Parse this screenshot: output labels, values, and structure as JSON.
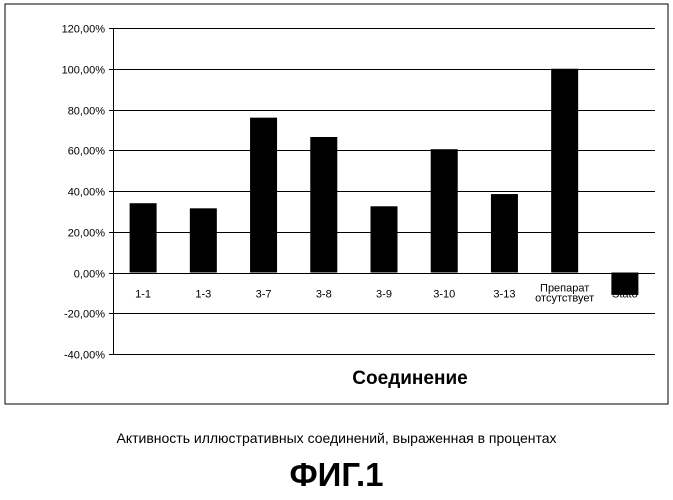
{
  "chart_data": {
    "type": "bar",
    "categories": [
      "1-1",
      "1-3",
      "3-7",
      "3-8",
      "3-9",
      "3-10",
      "3-13",
      "Препарат отсутствует",
      "Stato"
    ],
    "category_lines": [
      [
        "1-1"
      ],
      [
        "1-3"
      ],
      [
        "3-7"
      ],
      [
        "3-8"
      ],
      [
        "3-9"
      ],
      [
        "3-10"
      ],
      [
        "3-13"
      ],
      [
        "Препарат",
        "отсутствует"
      ],
      [
        "Stato"
      ]
    ],
    "values": [
      34,
      31.5,
      76,
      66.5,
      32.5,
      60.5,
      38.5,
      100,
      -11
    ],
    "ylim": [
      -40,
      120
    ],
    "yticks": [
      -40,
      -20,
      0,
      20,
      40,
      60,
      80,
      100,
      120
    ],
    "ytick_labels": [
      "-40,00%",
      "-20,00%",
      "0,00%",
      "20,00%",
      "40,00%",
      "60,00%",
      "80,00%",
      "100,00%",
      "120,00%"
    ],
    "xlabel": "Соединение",
    "ylabel": "",
    "grid": true,
    "legend": "none",
    "bar_color": "#000000"
  },
  "caption": "Активность иллюстративных соединений, выраженная в процентах",
  "figure_label": "ФИГ.1"
}
